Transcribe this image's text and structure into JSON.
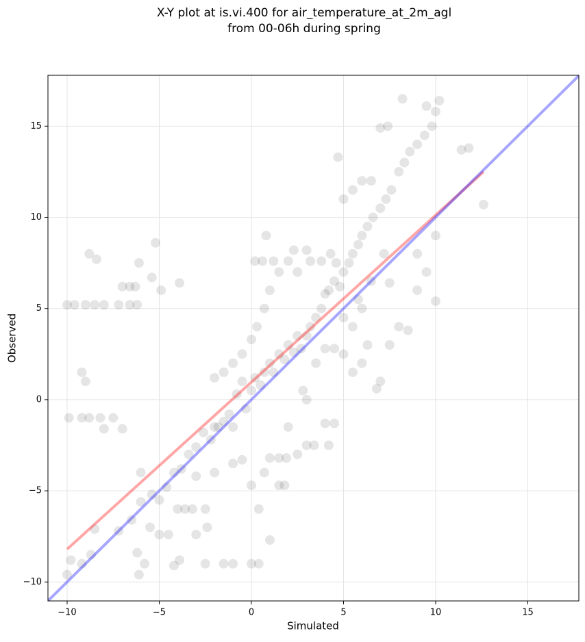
{
  "chart_data": {
    "type": "scatter",
    "title": [
      "X-Y plot at is.vi.400 for air_temperature_at_2m_agl",
      "from 00-06h during spring"
    ],
    "xlabel": "Simulated",
    "ylabel": "Observed",
    "xlim": [
      -11.04,
      17.77
    ],
    "ylim": [
      -11.04,
      17.79
    ],
    "xticks": [
      {
        "value": -10,
        "label": "−10"
      },
      {
        "value": -5,
        "label": "−5"
      },
      0,
      5,
      10,
      15
    ],
    "yticks": [
      {
        "value": -10,
        "label": "−10"
      },
      {
        "value": -5,
        "label": "−5"
      },
      0,
      5,
      10,
      15
    ],
    "grid": true,
    "series": [
      {
        "type": "scatter",
        "color": "#000000",
        "opacity": 0.1,
        "x": [
          -10,
          -9.6,
          -9,
          -8.5,
          -8,
          -7.2,
          -6.6,
          -6.2,
          -7,
          -6.6,
          -6.3,
          -8.8,
          -8.4,
          -6.1,
          -5.2,
          -5.4,
          -4.9,
          -3.9,
          -9.9,
          -9.2,
          -8.8,
          -8.2,
          -7.5,
          -9.2,
          -9,
          -7,
          -8,
          -10,
          -9.8,
          -9.2,
          -8.7,
          -8.5,
          -7.2,
          -6.5,
          -6,
          -6.2,
          -5.8,
          -6.1,
          -5.5,
          -5,
          -4.5,
          -4,
          -3.6,
          -3.2,
          -2.5,
          -3,
          -2.4,
          -2.5,
          -4.2,
          -3.9,
          -1.5,
          -1,
          0,
          0.4,
          1,
          0.4,
          -6,
          -5.4,
          -5,
          -4.6,
          -4.2,
          -3.8,
          -3.4,
          -3,
          -3,
          -2.6,
          -2.2,
          -2,
          -1.8,
          -1.5,
          -1.2,
          -1,
          -0.8,
          -0.5,
          -0.3,
          0,
          0.2,
          0.5,
          0.7,
          1,
          1.2,
          1.5,
          1.8,
          2,
          2.3,
          2.5,
          2.7,
          3,
          3.2,
          3.5,
          3.8,
          4,
          4.2,
          4.5,
          4.6,
          4.8,
          5,
          5.3,
          5.5,
          5.8,
          6,
          6.3,
          6.6,
          7,
          7.3,
          7.6,
          8,
          8.3,
          8.6,
          9,
          9.4,
          9.8,
          10,
          10.2,
          8.2,
          9.5,
          11.4,
          11.8,
          12.6,
          -2,
          -1.5,
          -1,
          -0.5,
          0,
          0.3,
          0.7,
          1,
          1.2,
          0.8,
          0.2,
          0.6,
          1.5,
          2,
          2.3,
          2.5,
          3,
          3.2,
          3.8,
          4.3,
          4.7,
          5,
          5.5,
          6,
          6.5,
          7,
          7.4,
          1,
          1.5,
          1.9,
          2.5,
          3,
          3.4,
          4,
          4.5,
          4.2,
          3,
          2,
          1.5,
          1.8,
          0.7,
          0,
          -0.5,
          -1,
          -2,
          5,
          5.5,
          6,
          6.3,
          6.8,
          7,
          7.5,
          8,
          8.5,
          9,
          9.5,
          10,
          10,
          9,
          7.5,
          7.2,
          6.5,
          6,
          5.5,
          4.5,
          4,
          3.5,
          2.8,
          5,
          5.8
        ],
        "y": [
          5.2,
          5.2,
          5.2,
          5.2,
          5.2,
          5.2,
          5.2,
          5.2,
          6.2,
          6.2,
          6.2,
          8,
          7.7,
          7.5,
          8.6,
          6.7,
          6,
          6.4,
          -1,
          -1,
          -1,
          -1,
          -1,
          1.5,
          1,
          -1.6,
          -1.6,
          -9.6,
          -8.8,
          -9,
          -8.5,
          -7.1,
          -7.2,
          -6.6,
          -5.6,
          -8.4,
          -9,
          -9.6,
          -7,
          -7.4,
          -7.4,
          -6,
          -6,
          -6,
          -6,
          -7.4,
          -7,
          -9,
          -9.1,
          -8.8,
          -9,
          -9,
          -9,
          -9,
          -7.7,
          -6,
          -4,
          -5.2,
          -5.5,
          -4.8,
          -4,
          -3.8,
          -3,
          -4.2,
          -2.6,
          -1.8,
          -2.2,
          -1.5,
          -1.5,
          -1.2,
          -0.8,
          -1.5,
          0.3,
          1,
          -0.5,
          0.5,
          1.2,
          0.8,
          1.5,
          2,
          1.5,
          2.5,
          2.2,
          3,
          2.6,
          3.5,
          2.8,
          3.5,
          4,
          4.5,
          5,
          5.8,
          6,
          6.5,
          7.5,
          6.2,
          7,
          7.5,
          8,
          8.5,
          9,
          9.5,
          10,
          10.5,
          11,
          11.5,
          12.5,
          13,
          13.6,
          14,
          14.5,
          15,
          15.8,
          16.4,
          16.5,
          16.1,
          13.7,
          13.8,
          10.7,
          1.2,
          1.5,
          2,
          2.5,
          3.3,
          4,
          5,
          6,
          7.6,
          9,
          7.6,
          7.6,
          7,
          7.6,
          8.2,
          7,
          8.2,
          7.6,
          7.6,
          8,
          13.3,
          11,
          11.5,
          12,
          12,
          14.9,
          15,
          -3.2,
          -3.2,
          -3.2,
          -3,
          -2.5,
          -2.5,
          -1.3,
          -1.3,
          -2.5,
          0,
          -1.5,
          -4.7,
          -4.7,
          -4,
          -4.7,
          -3.3,
          -3.5,
          -4,
          2.5,
          1.5,
          2,
          3,
          0.6,
          1,
          3,
          4,
          3.8,
          6,
          7,
          5.4,
          9,
          8,
          6.4,
          8,
          6.5,
          5,
          4,
          2.8,
          2.8,
          2,
          0.5,
          4.5,
          5.5
        ]
      },
      {
        "type": "line",
        "color": "#ff0000",
        "opacity": 0.35,
        "x": [
          -10,
          12.6
        ],
        "y": [
          -8.2,
          12.5
        ]
      },
      {
        "type": "line",
        "color": "#0000ff",
        "opacity": 0.35,
        "x": [
          -11.04,
          17.77
        ],
        "y": [
          -11.04,
          17.77
        ]
      }
    ]
  }
}
